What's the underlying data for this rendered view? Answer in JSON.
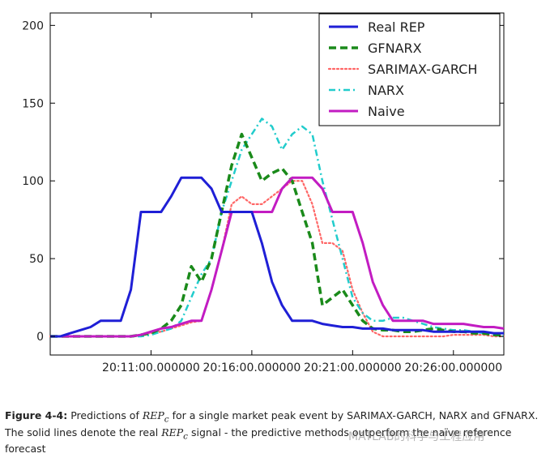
{
  "chart_data": {
    "type": "line",
    "title": "",
    "xlabel": "",
    "ylabel": "",
    "ylim": [
      -12,
      208
    ],
    "x_points": 46,
    "y_ticks": [
      0,
      50,
      100,
      150,
      200
    ],
    "x_ticks": [
      {
        "index": 10,
        "label": "20:11:00.000000"
      },
      {
        "index": 20,
        "label": "20:16:00.000000"
      },
      {
        "index": 30,
        "label": "20:21:00.000000"
      },
      {
        "index": 40,
        "label": "20:26:00.000000"
      }
    ],
    "legend_position": "top-right",
    "series": [
      {
        "name": "Real REP",
        "color": "#1f1fd6",
        "style": "solid",
        "values": [
          0,
          0,
          2,
          4,
          6,
          10,
          10,
          10,
          30,
          80,
          80,
          80,
          90,
          102,
          102,
          102,
          95,
          80,
          80,
          80,
          80,
          60,
          35,
          20,
          10,
          10,
          10,
          8,
          7,
          6,
          6,
          5,
          5,
          5,
          4,
          4,
          4,
          4,
          3,
          3,
          3,
          3,
          3,
          3,
          2,
          2
        ]
      },
      {
        "name": "GFNARX",
        "color": "#1a8a1a",
        "style": "dashed",
        "values": [
          0,
          0,
          0,
          0,
          0,
          0,
          0,
          0,
          0,
          1,
          2,
          5,
          10,
          20,
          45,
          35,
          50,
          80,
          110,
          130,
          115,
          100,
          105,
          108,
          100,
          80,
          60,
          20,
          25,
          30,
          20,
          10,
          5,
          4,
          4,
          3,
          3,
          4,
          5,
          4,
          3,
          3,
          2,
          2,
          1,
          1
        ]
      },
      {
        "name": "SARIMAX-GARCH",
        "color": "#ff6666",
        "style": "dotted",
        "values": [
          0,
          0,
          0,
          0,
          0,
          0,
          0,
          0,
          0,
          1,
          2,
          3,
          5,
          7,
          9,
          10,
          30,
          55,
          85,
          90,
          85,
          85,
          90,
          95,
          100,
          100,
          85,
          60,
          60,
          55,
          30,
          15,
          3,
          0,
          0,
          0,
          0,
          0,
          0,
          0,
          1,
          1,
          1,
          1,
          0,
          0
        ]
      },
      {
        "name": "NARX",
        "color": "#22cccc",
        "style": "dashdot",
        "values": [
          0,
          0,
          0,
          0,
          0,
          0,
          0,
          0,
          0,
          0,
          1,
          3,
          5,
          10,
          25,
          40,
          50,
          80,
          100,
          120,
          130,
          140,
          135,
          120,
          130,
          135,
          130,
          100,
          75,
          50,
          25,
          15,
          10,
          10,
          12,
          12,
          10,
          8,
          6,
          5,
          4,
          4,
          3,
          2,
          1,
          0
        ]
      },
      {
        "name": "Naive",
        "color": "#c21cc2",
        "style": "solid",
        "values": [
          0,
          0,
          0,
          0,
          0,
          0,
          0,
          0,
          0,
          1,
          3,
          5,
          6,
          8,
          10,
          10,
          30,
          55,
          80,
          80,
          80,
          80,
          80,
          95,
          102,
          102,
          102,
          95,
          80,
          80,
          80,
          60,
          35,
          20,
          10,
          10,
          10,
          10,
          8,
          8,
          8,
          8,
          7,
          6,
          6,
          5
        ]
      }
    ]
  },
  "caption": {
    "label": "Figure 4-4:",
    "part1": " Predictions of ",
    "math": "REP",
    "math_sub": "c",
    "part2": " for a single market peak event by SARIMAX-GARCH, NARX and GFNARX. The solid lines denote the real ",
    "part3": " signal - the predictive methods outperform the naïve reference forecast"
  },
  "watermark": "MATLAB的科学与工程应用"
}
